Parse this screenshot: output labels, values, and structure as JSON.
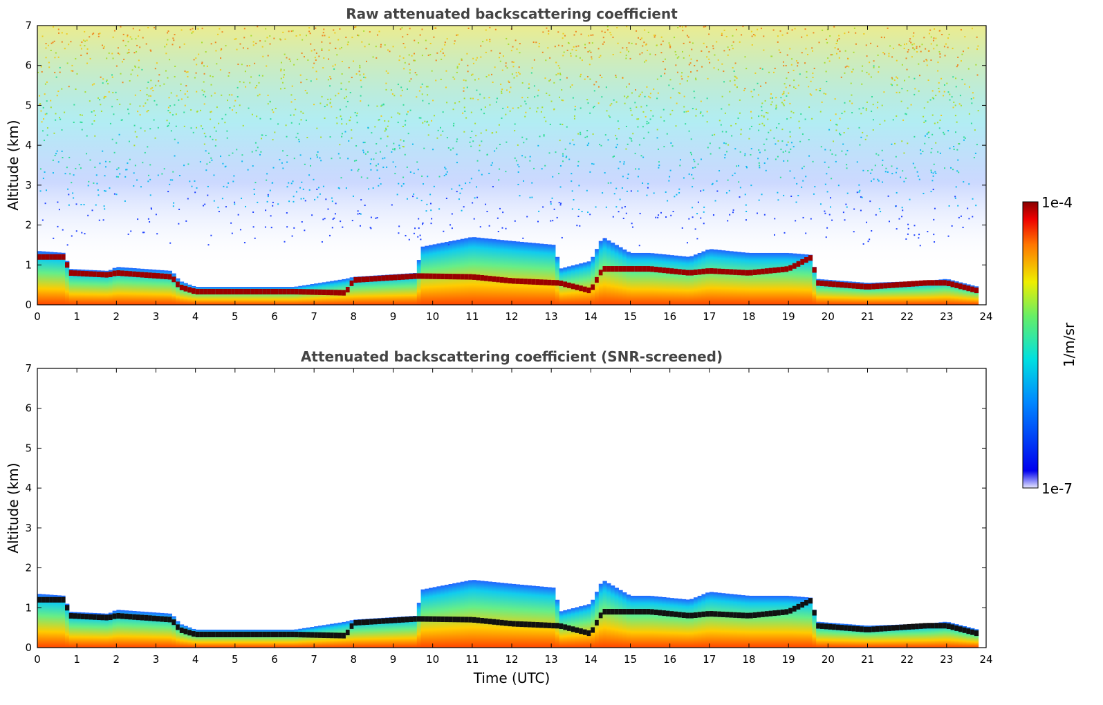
{
  "chart_data": [
    {
      "type": "heatmap",
      "title": "Raw attenuated backscattering coefficient",
      "xlabel": "",
      "ylabel": "Altitude (km)",
      "xlim": [
        0,
        24
      ],
      "ylim": [
        0,
        7
      ],
      "xticks": [
        "0",
        "1",
        "2",
        "3",
        "4",
        "5",
        "6",
        "7",
        "8",
        "9",
        "10",
        "11",
        "12",
        "13",
        "14",
        "15",
        "16",
        "17",
        "18",
        "19",
        "20",
        "21",
        "22",
        "23",
        "24"
      ],
      "yticks": [
        "0",
        "1",
        "2",
        "3",
        "4",
        "5",
        "6",
        "7"
      ],
      "screened": false
    },
    {
      "type": "heatmap",
      "title": "Attenuated backscattering coefficient (SNR-screened)",
      "xlabel": "Time (UTC)",
      "ylabel": "Altitude (km)",
      "xlim": [
        0,
        24
      ],
      "ylim": [
        0,
        7
      ],
      "xticks": [
        "0",
        "1",
        "2",
        "3",
        "4",
        "5",
        "6",
        "7",
        "8",
        "9",
        "10",
        "11",
        "12",
        "13",
        "14",
        "15",
        "16",
        "17",
        "18",
        "19",
        "20",
        "21",
        "22",
        "23",
        "24"
      ],
      "yticks": [
        "0",
        "1",
        "2",
        "3",
        "4",
        "5",
        "6",
        "7"
      ],
      "screened": true
    }
  ],
  "colorbar": {
    "label": "1/m/sr",
    "max_label": "1e-4",
    "min_label": "1e-7",
    "range": [
      1e-07,
      0.0001
    ],
    "scale": "log",
    "colormap": "jet"
  },
  "profile": {
    "time": [
      0,
      0.7,
      0.8,
      1.8,
      2.0,
      3.4,
      3.6,
      4.0,
      6.5,
      7.8,
      8.0,
      9.6,
      9.7,
      11.0,
      12.0,
      13.1,
      13.2,
      14.0,
      14.3,
      15.0,
      15.5,
      16.5,
      17.0,
      18.0,
      19.0,
      19.6,
      19.7,
      21.0,
      22.5,
      23.0,
      23.8
    ],
    "top_km": [
      1.35,
      1.3,
      0.9,
      0.85,
      0.95,
      0.85,
      0.6,
      0.45,
      0.45,
      0.65,
      0.7,
      0.8,
      1.45,
      1.7,
      1.6,
      1.5,
      0.9,
      1.1,
      1.7,
      1.3,
      1.3,
      1.2,
      1.4,
      1.3,
      1.3,
      1.25,
      0.65,
      0.55,
      0.6,
      0.65,
      0.45
    ],
    "layer_km": [
      1.2,
      1.2,
      0.8,
      0.75,
      0.8,
      0.7,
      0.45,
      0.33,
      0.33,
      0.3,
      0.62,
      0.72,
      0.72,
      0.7,
      0.6,
      0.55,
      0.55,
      0.35,
      0.9,
      0.9,
      0.9,
      0.8,
      0.85,
      0.8,
      0.9,
      1.2,
      0.55,
      0.45,
      0.55,
      0.55,
      0.35
    ]
  }
}
